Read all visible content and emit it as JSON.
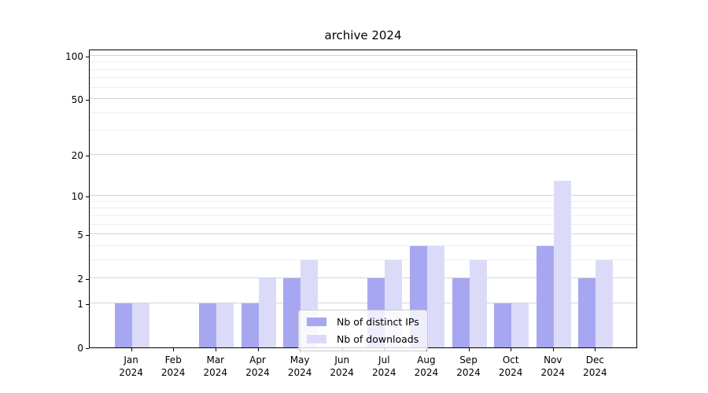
{
  "title": "archive 2024",
  "chart_data": {
    "type": "bar",
    "title": "archive 2024",
    "categories": [
      "Jan",
      "Feb",
      "Mar",
      "Apr",
      "May",
      "Jun",
      "Jul",
      "Aug",
      "Sep",
      "Oct",
      "Nov",
      "Dec"
    ],
    "year_label": "2024",
    "series": [
      {
        "name": "Nb of distinct IPs",
        "color": "#a7a7f1",
        "values": [
          1,
          0,
          1,
          1,
          2,
          0,
          2,
          4,
          2,
          1,
          4,
          2
        ]
      },
      {
        "name": "Nb of downloads",
        "color": "#dbdbf9",
        "values": [
          1,
          0,
          1,
          2,
          3,
          0,
          3,
          4,
          3,
          1,
          13,
          3
        ]
      }
    ],
    "xlabel": "",
    "ylabel": "",
    "yscale": "log1p",
    "ylim": [
      0,
      112
    ],
    "y_major_ticks": [
      0,
      1,
      2,
      5,
      10,
      20,
      50,
      100
    ],
    "y_minor_ticks": [
      3,
      4,
      6,
      7,
      8,
      9,
      30,
      40,
      60,
      70,
      80,
      90
    ],
    "grid": "horizontal",
    "legend_position": "lower-center-inside"
  },
  "colors": {
    "background": "#ffffff",
    "axis": "#000000",
    "grid_major": "#d4d4d4",
    "grid_minor": "#eeeeee",
    "text": "#000000"
  }
}
